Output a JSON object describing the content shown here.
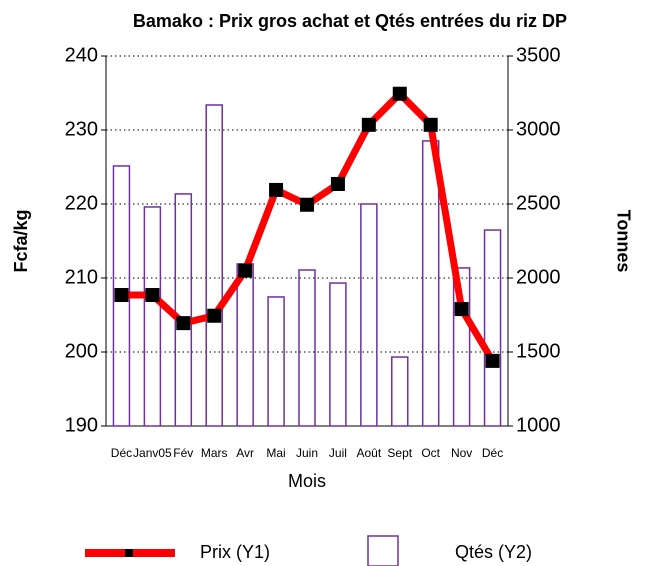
{
  "chart_data": {
    "type": "bar_line",
    "title": "Bamako : Prix  gros achat et Qtés entrées  du riz DP",
    "x_label": "Mois",
    "y_label": "Fcfa/kg",
    "y2_label": "Tonnes",
    "categories": [
      "Déc",
      "Janv05",
      "Fév",
      "Mars",
      "Avr",
      "Mai",
      "Juin",
      "Juil",
      "Août",
      "Sept",
      "Oct",
      "Nov",
      "Déc"
    ],
    "series": [
      {
        "name": "Prix (Y1)",
        "type": "line",
        "color": "#ff0000",
        "marker_color": "#000000",
        "values": [
          207.7,
          207.7,
          203.9,
          204.9,
          211,
          221.9,
          219.9,
          222.7,
          230.7,
          234.9,
          230.7,
          205.8,
          198.8
        ]
      },
      {
        "name": "Qtés (Y2)",
        "type": "bar",
        "axis": "y2",
        "color": "#7030a0",
        "values": [
          2757,
          2480,
          2568,
          3169,
          2095,
          1872,
          2054,
          1966,
          2500,
          1466,
          2926,
          2068,
          2324
        ]
      }
    ],
    "ylim": [
      190,
      240
    ],
    "yticks": [
      190,
      200,
      210,
      220,
      230,
      240
    ],
    "y2lim": [
      1000,
      3500
    ],
    "y2ticks": [
      1000,
      1500,
      2000,
      2500,
      3000,
      3500
    ],
    "grid": true,
    "legend": "bottom"
  }
}
